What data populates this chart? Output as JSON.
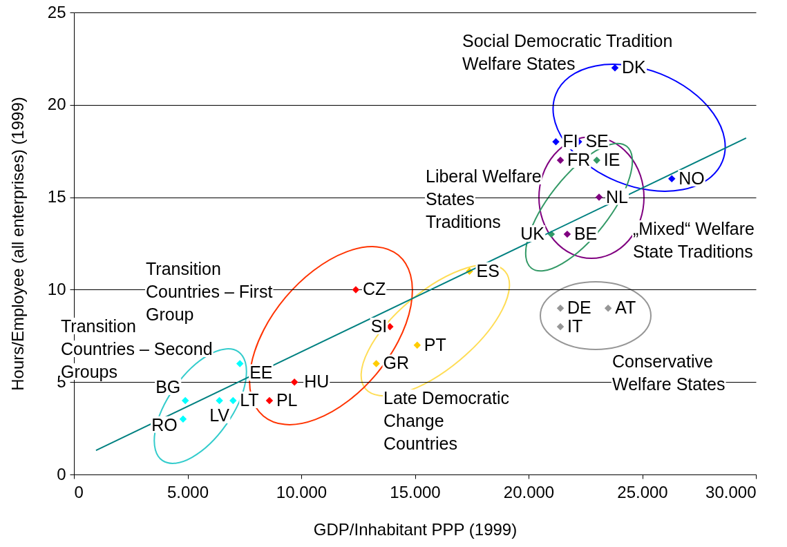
{
  "chart_data": {
    "type": "scatter",
    "xlabel": "GDP/Inhabitant PPP (1999)",
    "ylabel": "Hours/Employee (all enterprises) (1999)",
    "xlim": [
      0,
      30000
    ],
    "ylim": [
      0,
      25
    ],
    "xticks": [
      0,
      {
        "value": 5000,
        "label": "5.000"
      },
      {
        "value": 10000,
        "label": "10.000"
      },
      {
        "value": 15000,
        "label": "15.000"
      },
      {
        "value": 20000,
        "label": "20.000"
      },
      {
        "value": 25000,
        "label": "25.000"
      },
      {
        "value": 30000,
        "label": "30.000"
      }
    ],
    "yticks": [
      0,
      5,
      10,
      15,
      20,
      25
    ],
    "grid": "y",
    "marker": "diamond",
    "series": [
      {
        "color": "#0000ff",
        "x": [
          23800,
          21200,
          22200,
          26300
        ],
        "values": [
          22,
          18,
          18,
          16
        ],
        "value_labels": [
          "DK",
          "FI",
          "SE",
          "NO"
        ]
      },
      {
        "color": "#800080",
        "x": [
          21400,
          23100,
          21700
        ],
        "values": [
          17,
          15,
          13
        ],
        "value_labels": [
          "FR",
          "NL",
          "BE"
        ]
      },
      {
        "color": "#339966",
        "x": [
          23000,
          21000
        ],
        "values": [
          17,
          13
        ],
        "value_labels": [
          "IE",
          "UK"
        ]
      },
      {
        "color": "#ffcc00",
        "x": [
          17400,
          15100,
          13300
        ],
        "values": [
          11,
          7,
          6
        ],
        "value_labels": [
          "ES",
          "PT",
          "GR"
        ]
      },
      {
        "color": "#ff0000",
        "x": [
          12400,
          13900,
          9700,
          8600
        ],
        "values": [
          10,
          8,
          5,
          4
        ],
        "value_labels": [
          "CZ",
          "SI",
          "HU",
          "PL"
        ]
      },
      {
        "color": "#00ffff",
        "x": [
          7300,
          7000,
          6400,
          4900,
          4800
        ],
        "values": [
          6,
          4,
          4,
          4,
          3
        ],
        "value_labels": [
          "EE",
          "LT",
          "LV",
          "BG",
          "RO"
        ]
      },
      {
        "color": "#969696",
        "x": [
          21400,
          23500,
          21400
        ],
        "values": [
          9,
          9,
          8
        ],
        "value_labels": [
          "DE",
          "AT",
          "IT"
        ]
      },
      {
        "type": "line",
        "color": "#008080",
        "marker": "none",
        "x": [
          970,
          29570
        ],
        "values": [
          1.3,
          18.2
        ]
      }
    ],
    "annotations": [
      "Social Democratic Tradition\nWelfare States",
      "Liberal Welfare\nStates\nTraditions",
      "„Mixed“ Welfare\nState Traditions",
      "Transition\nCountries – First\nGroup",
      "Transition\nCountries – Second\nGroups",
      "Late Democratic\nChange\nCountries",
      "Conservative\nWelfare States"
    ]
  }
}
